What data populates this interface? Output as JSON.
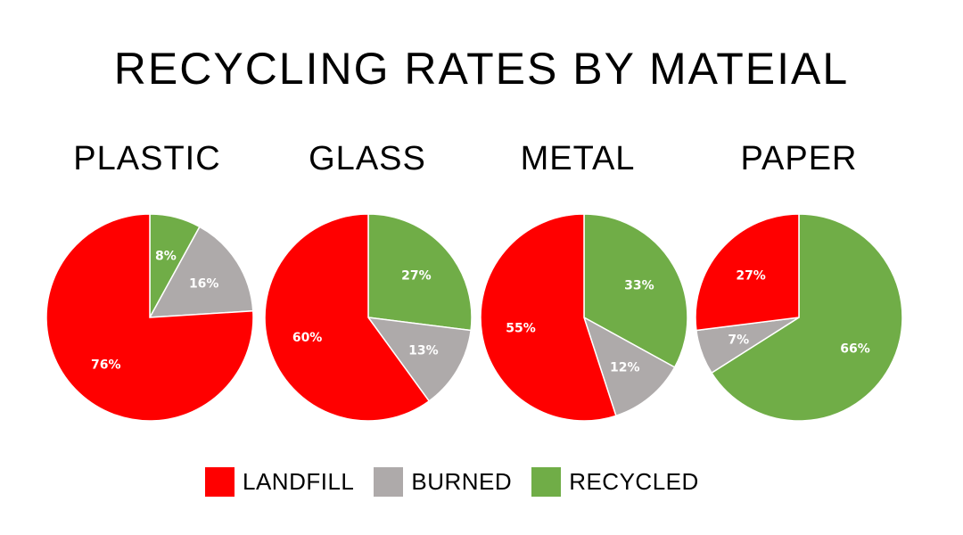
{
  "colors": {
    "landfill": "#ff0000",
    "burned": "#aeaaaa",
    "recycled": "#70ad47"
  },
  "chart_data": [
    {
      "type": "pie",
      "title": "PLASTIC",
      "labels": [
        "RECYCLED",
        "BURNED",
        "LANDFILL"
      ],
      "values": [
        8,
        16,
        76
      ],
      "value_labels": [
        "8%",
        "16%",
        "76%"
      ]
    },
    {
      "type": "pie",
      "title": "GLASS",
      "labels": [
        "RECYCLED",
        "BURNED",
        "LANDFILL"
      ],
      "values": [
        27,
        13,
        60
      ],
      "value_labels": [
        "27%",
        "13%",
        "60%"
      ]
    },
    {
      "type": "pie",
      "title": "METAL",
      "labels": [
        "RECYCLED",
        "BURNED",
        "LANDFILL"
      ],
      "values": [
        33,
        12,
        55
      ],
      "value_labels": [
        "33%",
        "12%",
        "55%"
      ]
    },
    {
      "type": "pie",
      "title": "PAPER",
      "labels": [
        "RECYCLED",
        "BURNED",
        "LANDFILL"
      ],
      "values": [
        66,
        7,
        27
      ],
      "value_labels": [
        "66%",
        "7%",
        "27%"
      ]
    }
  ],
  "page": {
    "title": "RECYCLING RATES BY MATEIAL"
  },
  "legend": {
    "landfill": "LANDFILL",
    "burned": "BURNED",
    "recycled": "RECYCLED"
  }
}
